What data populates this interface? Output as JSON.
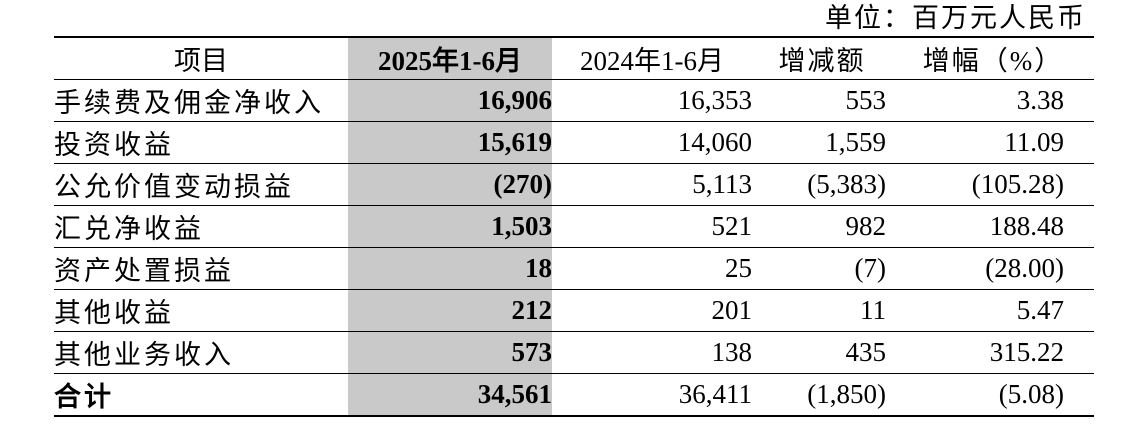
{
  "unit_label": "单位：百万元人民币",
  "headers": {
    "item": "项目",
    "current": "2025年1-6月",
    "previous": "2024年1-6月",
    "change": "增减额",
    "pct": "增幅（%）"
  },
  "rows": [
    {
      "item": "手续费及佣金净收入",
      "current": "16,906",
      "previous": "16,353",
      "change": "553",
      "pct": "3.38"
    },
    {
      "item": "投资收益",
      "current": "15,619",
      "previous": "14,060",
      "change": "1,559",
      "pct": "11.09"
    },
    {
      "item": "公允价值变动损益",
      "current": "(270)",
      "previous": "5,113",
      "change": "(5,383)",
      "pct": "(105.28)"
    },
    {
      "item": "汇兑净收益",
      "current": "1,503",
      "previous": "521",
      "change": "982",
      "pct": "188.48"
    },
    {
      "item": "资产处置损益",
      "current": "18",
      "previous": "25",
      "change": "(7)",
      "pct": "(28.00)"
    },
    {
      "item": "其他收益",
      "current": "212",
      "previous": "201",
      "change": "11",
      "pct": "5.47"
    },
    {
      "item": "其他业务收入",
      "current": "573",
      "previous": "138",
      "change": "435",
      "pct": "315.22"
    }
  ],
  "total": {
    "item": "合计",
    "current": "34,561",
    "previous": "36,411",
    "change": "(1,850)",
    "pct": "(5.08)"
  },
  "colors": {
    "highlight_column": "#c9c9c9",
    "text": "#000000",
    "rules": "#000000"
  }
}
